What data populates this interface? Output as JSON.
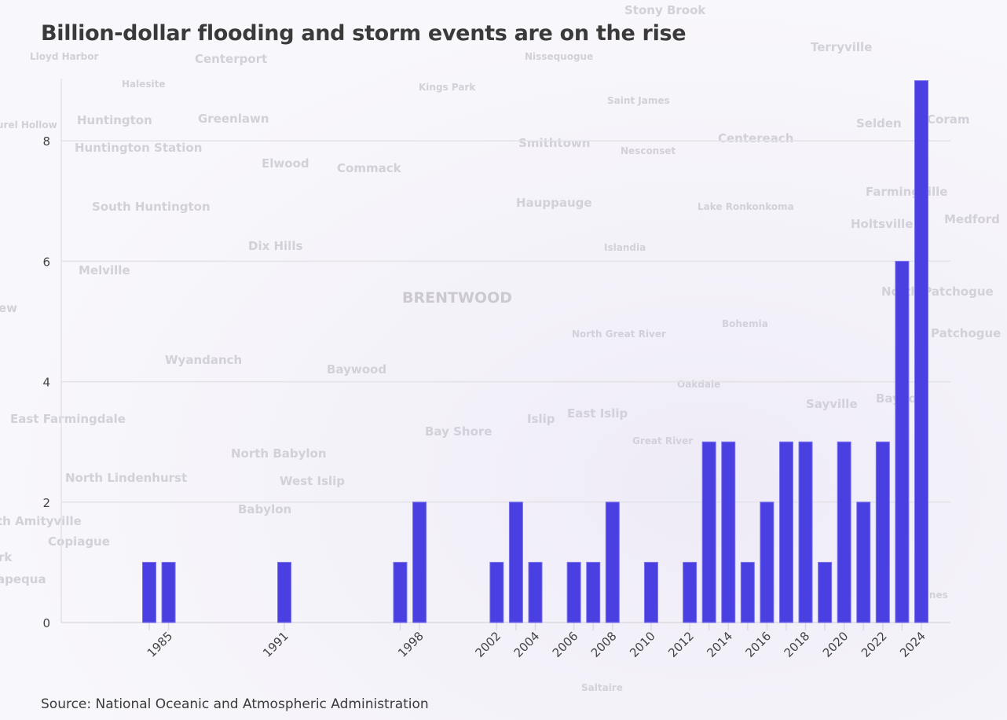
{
  "title": "Billion-dollar flooding and storm events are on the rise",
  "source": "Source: National Oceanic and Atmospheric Administration",
  "basemap_labels": [
    "Stony Brook",
    "Lloyd Harbor",
    "Centerport",
    "Nissequogue",
    "Terryville",
    "Halesite",
    "Kings Park",
    "Saint James",
    "Huntington",
    "Greenlawn",
    "Selden",
    "Coram",
    "urel Hollow",
    "Huntington Station",
    "Smithtown",
    "Nesconset",
    "Centereach",
    "Elwood",
    "Commack",
    "Farmingville",
    "South Huntington",
    "Hauppauge",
    "Lake Ronkonkoma",
    "Holtsville",
    "Medford",
    "Dix Hills",
    "Islandia",
    "Melville",
    "BRENTWOOD",
    "North Patchogue",
    "ew",
    "Bohemia",
    "North Great River",
    "Patchogue",
    "Wyandanch",
    "Baywood",
    "Oakdale",
    "Sayville",
    "Bayport",
    "East Farmingdale",
    "Islip",
    "East Islip",
    "Bay Shore",
    "Great River",
    "North Babylon",
    "North Lindenhurst",
    "West Islip",
    "th Amityville",
    "Babylon",
    "Copiague",
    "rk",
    "apequa",
    "Pines",
    "Saltaire"
  ],
  "chart_data": {
    "type": "bar",
    "title": "Billion-dollar flooding and storm events are on the rise",
    "xlabel": "",
    "ylabel": "",
    "bar_color": "#4a3fe0",
    "grid": true,
    "ylim": [
      0,
      9
    ],
    "yticks": [
      0,
      2,
      4,
      6,
      8
    ],
    "xlim": [
      1984,
      2024
    ],
    "xtick_labels": [
      "1985",
      "1991",
      "1998",
      "2002",
      "2004",
      "2006",
      "2008",
      "2010",
      "2012",
      "2014",
      "2016",
      "2018",
      "2020",
      "2022",
      "2024"
    ],
    "categories": [
      1984,
      1985,
      1991,
      1997,
      1998,
      2002,
      2003,
      2004,
      2006,
      2007,
      2008,
      2010,
      2012,
      2013,
      2014,
      2015,
      2016,
      2017,
      2018,
      2019,
      2020,
      2021,
      2022,
      2023,
      2024
    ],
    "values": [
      1,
      1,
      1,
      1,
      2,
      1,
      2,
      1,
      1,
      1,
      2,
      1,
      1,
      3,
      3,
      1,
      2,
      3,
      3,
      1,
      3,
      2,
      3,
      6,
      9
    ]
  }
}
